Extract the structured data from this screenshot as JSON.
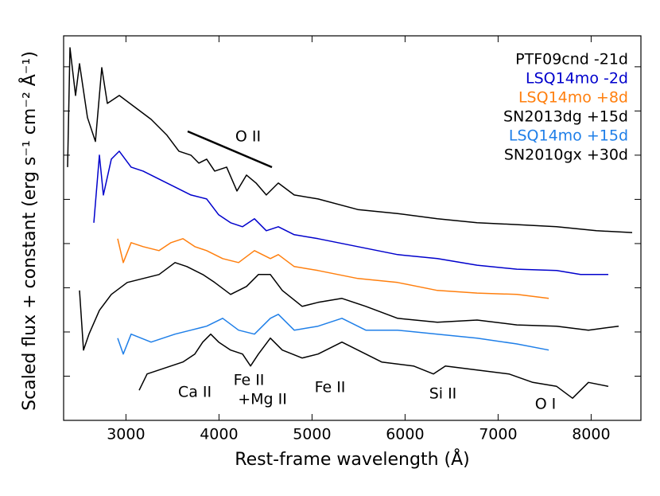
{
  "chart_data": {
    "type": "line",
    "xlabel": "Rest-frame wavelength (Å)",
    "ylabel": "Scaled flux + constant (erg s⁻¹ cm⁻² Å⁻¹)",
    "xlim": [
      2330,
      8535
    ],
    "ylim": [
      0,
      8.7
    ],
    "xticks": [
      3000,
      4000,
      5000,
      6000,
      7000,
      8000
    ],
    "yticks": [
      1,
      2,
      3,
      4,
      5,
      6,
      7,
      8
    ],
    "legend": "upper right",
    "annotations": [
      "O II",
      "Ca II",
      "Fe II",
      "+Mg II",
      "Fe II",
      "Si II",
      "O I"
    ],
    "series": [
      {
        "name": "PTF09cnd -21d",
        "color": "#000000",
        "x": [
          2373,
          2398,
          2458,
          2501,
          2586,
          2672,
          2740,
          2800,
          2928,
          3099,
          3270,
          3441,
          3569,
          3698,
          3783,
          3868,
          3954,
          4082,
          4193,
          4296,
          4398,
          4509,
          4638,
          4809,
          5065,
          5492,
          5920,
          6347,
          6774,
          7202,
          7629,
          8056,
          8441
        ],
        "values": [
          5.73,
          8.43,
          7.35,
          8.07,
          6.85,
          6.31,
          7.98,
          7.17,
          7.35,
          7.08,
          6.81,
          6.45,
          6.09,
          6.0,
          5.82,
          5.91,
          5.64,
          5.73,
          5.19,
          5.55,
          5.37,
          5.1,
          5.37,
          5.1,
          5.01,
          4.77,
          4.68,
          4.56,
          4.47,
          4.43,
          4.38,
          4.29,
          4.25
        ]
      },
      {
        "name": "LSQ14mo -2d",
        "color": "#0000cc",
        "x": [
          2655,
          2715,
          2757,
          2843,
          2928,
          3056,
          3185,
          3356,
          3527,
          3698,
          3868,
          3997,
          4125,
          4253,
          4381,
          4509,
          4638,
          4809,
          5065,
          5492,
          5920,
          6347,
          6774,
          7202,
          7629,
          7886,
          8185
        ],
        "values": [
          4.47,
          6.0,
          5.1,
          5.91,
          6.09,
          5.73,
          5.64,
          5.46,
          5.28,
          5.1,
          5.01,
          4.65,
          4.47,
          4.38,
          4.56,
          4.29,
          4.38,
          4.2,
          4.11,
          3.93,
          3.75,
          3.66,
          3.51,
          3.42,
          3.39,
          3.3,
          3.3
        ]
      },
      {
        "name": "LSQ14mo +8d",
        "color": "#ff7f0e",
        "x": [
          2911,
          2971,
          3056,
          3185,
          3356,
          3484,
          3612,
          3740,
          3868,
          4039,
          4210,
          4381,
          4552,
          4638,
          4809,
          5065,
          5492,
          5920,
          6347,
          6774,
          7202,
          7544
        ],
        "values": [
          4.11,
          3.57,
          4.02,
          3.93,
          3.84,
          4.02,
          4.11,
          3.93,
          3.84,
          3.66,
          3.57,
          3.84,
          3.66,
          3.75,
          3.48,
          3.39,
          3.21,
          3.12,
          2.94,
          2.88,
          2.85,
          2.76
        ]
      },
      {
        "name": "SN2013dg +15d",
        "color": "#000000",
        "x": [
          2501,
          2544,
          2603,
          2715,
          2843,
          3014,
          3185,
          3356,
          3527,
          3655,
          3826,
          3954,
          4125,
          4296,
          4424,
          4552,
          4680,
          4894,
          5065,
          5321,
          5578,
          5920,
          6347,
          6774,
          7202,
          7629,
          7971,
          8296
        ],
        "values": [
          2.94,
          1.59,
          1.95,
          2.49,
          2.85,
          3.12,
          3.21,
          3.3,
          3.57,
          3.48,
          3.3,
          3.12,
          2.85,
          3.03,
          3.3,
          3.3,
          2.94,
          2.58,
          2.67,
          2.76,
          2.58,
          2.31,
          2.22,
          2.27,
          2.16,
          2.13,
          2.04,
          2.13
        ]
      },
      {
        "name": "LSQ14mo +15d",
        "color": "#1f7fe8",
        "x": [
          2911,
          2971,
          3056,
          3270,
          3527,
          3698,
          3868,
          4039,
          4210,
          4381,
          4552,
          4638,
          4809,
          5065,
          5321,
          5578,
          5920,
          6347,
          6774,
          7202,
          7544
        ],
        "values": [
          1.86,
          1.5,
          1.95,
          1.77,
          1.95,
          2.04,
          2.13,
          2.31,
          2.04,
          1.95,
          2.31,
          2.4,
          2.04,
          2.13,
          2.31,
          2.04,
          2.04,
          1.95,
          1.86,
          1.73,
          1.59
        ]
      },
      {
        "name": "SN2010gx +30d",
        "color": "#000000",
        "x": [
          3142,
          3227,
          3356,
          3484,
          3612,
          3740,
          3826,
          3911,
          3997,
          4125,
          4253,
          4339,
          4424,
          4552,
          4680,
          4894,
          5065,
          5321,
          5492,
          5749,
          6091,
          6304,
          6433,
          6774,
          7116,
          7373,
          7629,
          7800,
          7971,
          8185
        ],
        "values": [
          0.68,
          1.05,
          1.14,
          1.23,
          1.32,
          1.5,
          1.77,
          1.95,
          1.77,
          1.59,
          1.5,
          1.23,
          1.5,
          1.86,
          1.59,
          1.41,
          1.5,
          1.77,
          1.59,
          1.32,
          1.23,
          1.05,
          1.23,
          1.14,
          1.05,
          0.86,
          0.77,
          0.5,
          0.86,
          0.77
        ]
      }
    ]
  }
}
